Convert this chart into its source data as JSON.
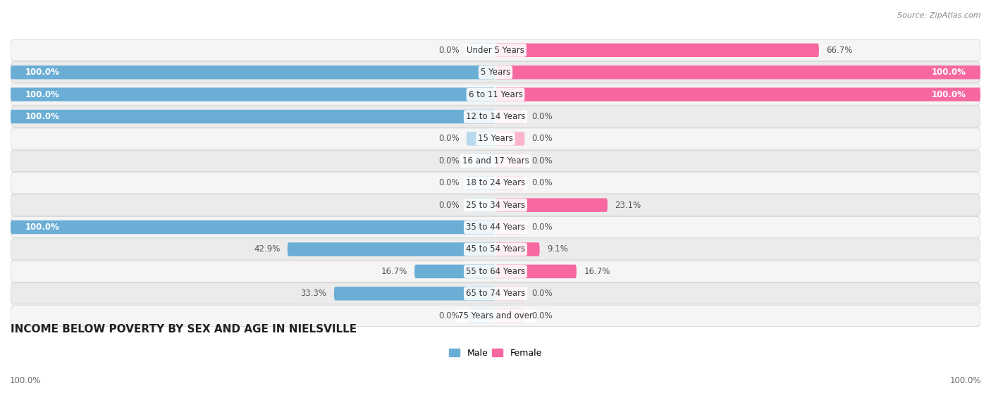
{
  "title": "INCOME BELOW POVERTY BY SEX AND AGE IN NIELSVILLE",
  "source": "Source: ZipAtlas.com",
  "categories": [
    "Under 5 Years",
    "5 Years",
    "6 to 11 Years",
    "12 to 14 Years",
    "15 Years",
    "16 and 17 Years",
    "18 to 24 Years",
    "25 to 34 Years",
    "35 to 44 Years",
    "45 to 54 Years",
    "55 to 64 Years",
    "65 to 74 Years",
    "75 Years and over"
  ],
  "male_values": [
    0.0,
    100.0,
    100.0,
    100.0,
    0.0,
    0.0,
    0.0,
    0.0,
    100.0,
    42.9,
    16.7,
    33.3,
    0.0
  ],
  "female_values": [
    66.7,
    100.0,
    100.0,
    0.0,
    0.0,
    0.0,
    0.0,
    23.1,
    0.0,
    9.1,
    16.7,
    0.0,
    0.0
  ],
  "male_color": "#6aaed6",
  "male_color_light": "#b8d9ee",
  "female_color": "#f768a1",
  "female_color_light": "#fbb4c9",
  "row_bg_odd": "#f0f0f0",
  "row_bg_even": "#e2e2e2",
  "title_fontsize": 11,
  "label_fontsize": 8.5,
  "cat_fontsize": 8.5,
  "legend_fontsize": 9,
  "source_fontsize": 8
}
